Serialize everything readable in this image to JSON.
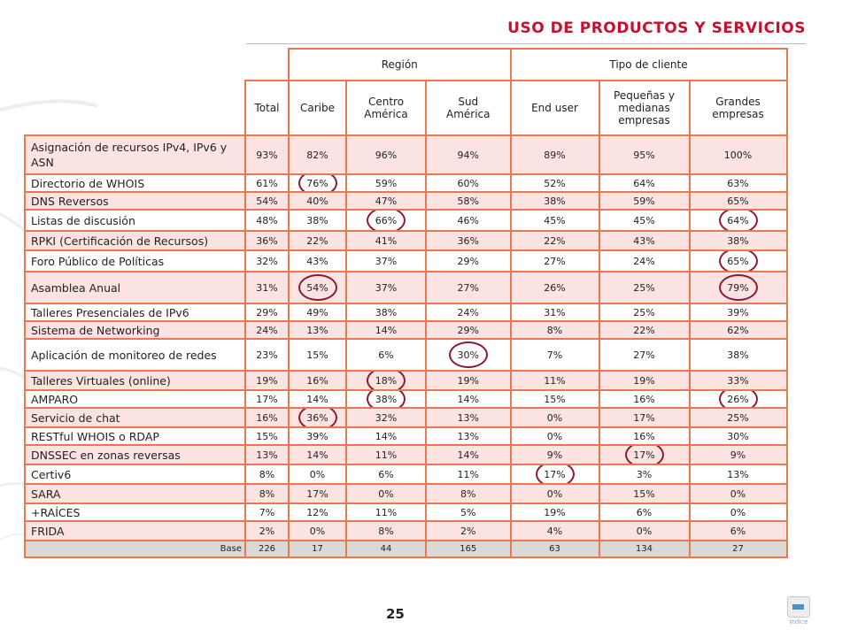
{
  "title": "USO DE PRODUCTOS Y SERVICIOS",
  "page_number": "25",
  "index_label": "índice",
  "header": {
    "group_region": "Región",
    "group_tipo": "Tipo de cliente",
    "cols": [
      "Total",
      "Caribe",
      "Centro América",
      "Sud América",
      "End user",
      "Pequeñas y medianas empresas",
      "Grandes empresas"
    ]
  },
  "rows": [
    {
      "label": "Asignación de recursos IPv4, IPv6 y ASN",
      "values": [
        "93%",
        "82%",
        "96%",
        "94%",
        "89%",
        "95%",
        "100%"
      ],
      "circled": []
    },
    {
      "label": "Directorio de WHOIS",
      "values": [
        "61%",
        "76%",
        "59%",
        "60%",
        "52%",
        "64%",
        "63%"
      ],
      "circled": [
        1
      ]
    },
    {
      "label": "DNS Reversos",
      "values": [
        "54%",
        "40%",
        "47%",
        "58%",
        "38%",
        "59%",
        "65%"
      ],
      "circled": []
    },
    {
      "label": "Listas de discusión",
      "values": [
        "48%",
        "38%",
        "66%",
        "46%",
        "45%",
        "45%",
        "64%"
      ],
      "circled": [
        2,
        6
      ]
    },
    {
      "label": "RPKI (Certificación de Recursos)",
      "values": [
        "36%",
        "22%",
        "41%",
        "36%",
        "22%",
        "43%",
        "38%"
      ],
      "circled": []
    },
    {
      "label": "Foro Público de Políticas",
      "values": [
        "32%",
        "43%",
        "37%",
        "29%",
        "27%",
        "24%",
        "65%"
      ],
      "circled": [
        6
      ]
    },
    {
      "label": "Asamblea Anual",
      "values": [
        "31%",
        "54%",
        "37%",
        "27%",
        "26%",
        "25%",
        "79%"
      ],
      "circled": [
        1,
        6
      ]
    },
    {
      "label": "Talleres Presenciales de IPv6",
      "values": [
        "29%",
        "49%",
        "38%",
        "24%",
        "31%",
        "25%",
        "39%"
      ],
      "circled": []
    },
    {
      "label": "Sistema de Networking",
      "values": [
        "24%",
        "13%",
        "14%",
        "29%",
        "8%",
        "22%",
        "62%"
      ],
      "circled": []
    },
    {
      "label": "Aplicación de monitoreo de redes",
      "values": [
        "23%",
        "15%",
        "6%",
        "30%",
        "7%",
        "27%",
        "38%"
      ],
      "circled": [
        3
      ]
    },
    {
      "label": "Talleres Virtuales (online)",
      "values": [
        "19%",
        "16%",
        "18%",
        "19%",
        "11%",
        "19%",
        "33%"
      ],
      "circled": [
        2
      ]
    },
    {
      "label": "AMPARO",
      "values": [
        "17%",
        "14%",
        "38%",
        "14%",
        "15%",
        "16%",
        "26%"
      ],
      "circled": [
        2,
        6
      ]
    },
    {
      "label": "Servicio de chat",
      "values": [
        "16%",
        "36%",
        "32%",
        "13%",
        "0%",
        "17%",
        "25%"
      ],
      "circled": [
        1
      ]
    },
    {
      "label": "RESTful WHOIS o RDAP",
      "values": [
        "15%",
        "39%",
        "14%",
        "13%",
        "0%",
        "16%",
        "30%"
      ],
      "circled": []
    },
    {
      "label": "DNSSEC en zonas reversas",
      "values": [
        "13%",
        "14%",
        "11%",
        "14%",
        "9%",
        "17%",
        "9%"
      ],
      "circled": [
        5
      ]
    },
    {
      "label": "Certiv6",
      "values": [
        "8%",
        "0%",
        "6%",
        "11%",
        "17%",
        "3%",
        "13%"
      ],
      "circled": [
        4
      ]
    },
    {
      "label": "SARA",
      "values": [
        "8%",
        "17%",
        "0%",
        "8%",
        "0%",
        "15%",
        "0%"
      ],
      "circled": []
    },
    {
      "label": "+RAÍCES",
      "values": [
        "7%",
        "12%",
        "11%",
        "5%",
        "19%",
        "6%",
        "0%"
      ],
      "circled": []
    },
    {
      "label": "FRIDA",
      "values": [
        "2%",
        "0%",
        "8%",
        "2%",
        "4%",
        "0%",
        "6%"
      ],
      "circled": []
    }
  ],
  "base": {
    "label": "Base",
    "values": [
      "226",
      "17",
      "44",
      "165",
      "63",
      "134",
      "27"
    ]
  },
  "colors": {
    "title": "#c8102e",
    "border": "#e8784f",
    "row_shade": "#fbe3e1",
    "circle": "#8b1a2e",
    "base_row": "#d9d9d9"
  }
}
